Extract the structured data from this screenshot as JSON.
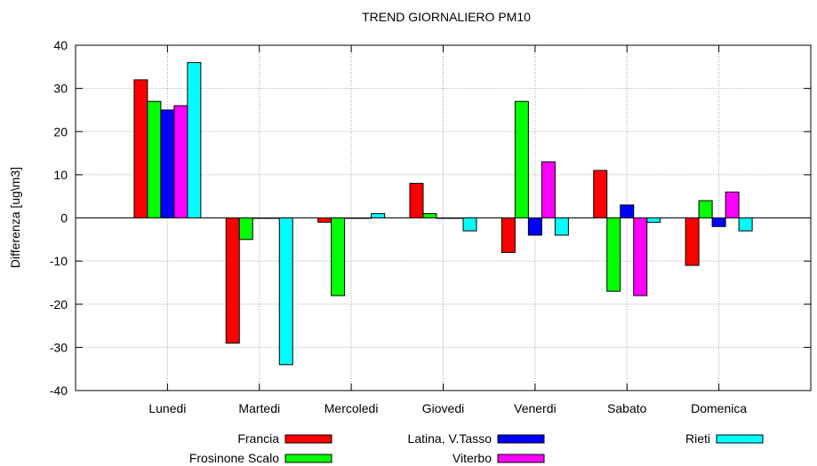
{
  "chart_data": {
    "type": "bar",
    "title": "TREND GIORNALIERO PM10",
    "xlabel": "",
    "ylabel": "Differenza [ug\\m3]",
    "ylim": [
      -40,
      40
    ],
    "yticks": [
      -40,
      -30,
      -20,
      -10,
      0,
      10,
      20,
      30,
      40
    ],
    "grid": true,
    "legend_position": "bottom",
    "categories": [
      "Lunedi",
      "Martedi",
      "Mercoledi",
      "Giovedi",
      "Venerdi",
      "Sabato",
      "Domenica"
    ],
    "series": [
      {
        "name": "Francia",
        "color": "#ff0000",
        "values": [
          32,
          -29,
          -1,
          8,
          -8,
          11,
          -11
        ]
      },
      {
        "name": "Frosinone Scalo",
        "color": "#00ff00",
        "values": [
          27,
          -5,
          -18,
          1,
          27,
          -17,
          4
        ]
      },
      {
        "name": "Latina, V.Tasso",
        "color": "#0000ff",
        "values": [
          25,
          0,
          0,
          0,
          -4,
          3,
          -2
        ]
      },
      {
        "name": "Viterbo",
        "color": "#ff00ff",
        "values": [
          26,
          0,
          0,
          0,
          13,
          -18,
          6
        ]
      },
      {
        "name": "Rieti",
        "color": "#00ffff",
        "values": [
          36,
          -34,
          1,
          -3,
          -4,
          -1,
          -3
        ]
      }
    ]
  }
}
